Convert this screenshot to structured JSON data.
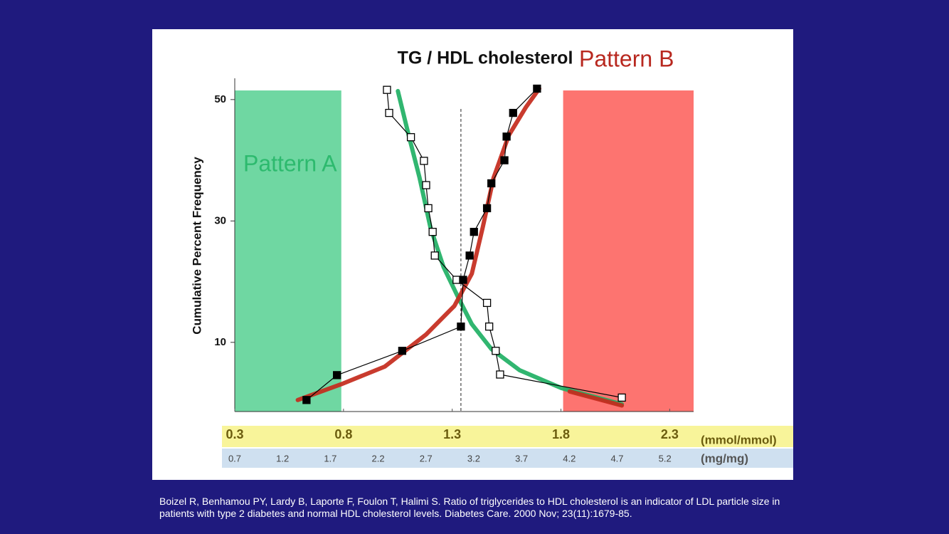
{
  "chart_data": {
    "type": "line",
    "title": "TG / HDL cholesterol",
    "ylabel": "Cumulative Percent Frequency",
    "xlabel": "(mmol/mmol)",
    "x2label": "(mg/mg)",
    "xlim": [
      0.3,
      2.41
    ],
    "xticks": [
      0.3,
      0.8,
      1.3,
      1.8,
      2.3
    ],
    "x2lim": [
      0.7,
      5.5
    ],
    "x2ticks": [
      0.7,
      1.2,
      1.7,
      2.2,
      2.7,
      3.2,
      3.7,
      4.2,
      4.7,
      5.2
    ],
    "ylim": [
      -1.4,
      53.5
    ],
    "yticks": [
      10,
      30,
      50
    ],
    "bands": [
      {
        "label": "Pattern A",
        "color": "#6fd7a2",
        "label_color": "#2dba6e",
        "x": [
          0.3,
          0.79
        ],
        "top": 51.5
      },
      {
        "label": "Pattern B",
        "color": "#fd7470",
        "label_color": "#b8281f",
        "x": [
          1.81,
          2.41
        ],
        "top": 51.5
      }
    ],
    "vlines": [
      1.34
    ],
    "series": [
      {
        "marker": "open-square",
        "color": "#000000",
        "x": [
          1.0,
          1.01,
          1.11,
          1.17,
          1.18,
          1.19,
          1.21,
          1.22,
          1.32,
          1.46,
          1.47,
          1.5,
          1.52,
          2.08
        ],
        "values": [
          51.6,
          47.8,
          43.8,
          39.9,
          35.9,
          32.1,
          28.2,
          24.3,
          20.3,
          16.5,
          12.6,
          8.6,
          4.7,
          0.9
        ]
      },
      {
        "marker": "filled-square",
        "color": "#000000",
        "x": [
          0.63,
          0.77,
          1.07,
          1.34,
          1.35,
          1.38,
          1.4,
          1.46,
          1.48,
          1.54,
          1.55,
          1.58,
          1.69
        ],
        "values": [
          0.5,
          4.6,
          8.6,
          12.6,
          20.3,
          24.3,
          28.2,
          32.1,
          36.2,
          40.0,
          43.9,
          47.8,
          51.8
        ]
      },
      {
        "marker": "curve",
        "color": "#1fb064",
        "x": [
          1.05,
          1.1,
          1.15,
          1.2,
          1.26,
          1.33,
          1.39,
          1.48,
          1.61,
          1.8,
          2.08
        ],
        "values": [
          51.4,
          44.1,
          37.1,
          28.9,
          22.4,
          17.2,
          13.0,
          8.9,
          5.4,
          2.5,
          -0.2
        ]
      },
      {
        "marker": "curve",
        "color": "#c42a1c",
        "x": [
          0.59,
          0.79,
          0.99,
          1.18,
          1.31,
          1.39,
          1.44,
          1.49,
          1.56,
          1.64,
          1.7,
          null,
          1.84,
          2.08
        ],
        "values": [
          0.5,
          3.1,
          6.0,
          11.3,
          16.0,
          21.3,
          28.9,
          37.1,
          44.1,
          48.8,
          51.8,
          null,
          1.9,
          -0.4
        ]
      }
    ]
  },
  "footnote": "Boizel R, Benhamou PY, Lardy B, Laporte F, Foulon T, Halimi S. Ratio of triglycerides to HDL cholesterol is an indicator of LDL particle size in patients with type 2 diabetes and normal HDL cholesterol levels. Diabetes Care. 2000 Nov; 23(11):1679-85."
}
